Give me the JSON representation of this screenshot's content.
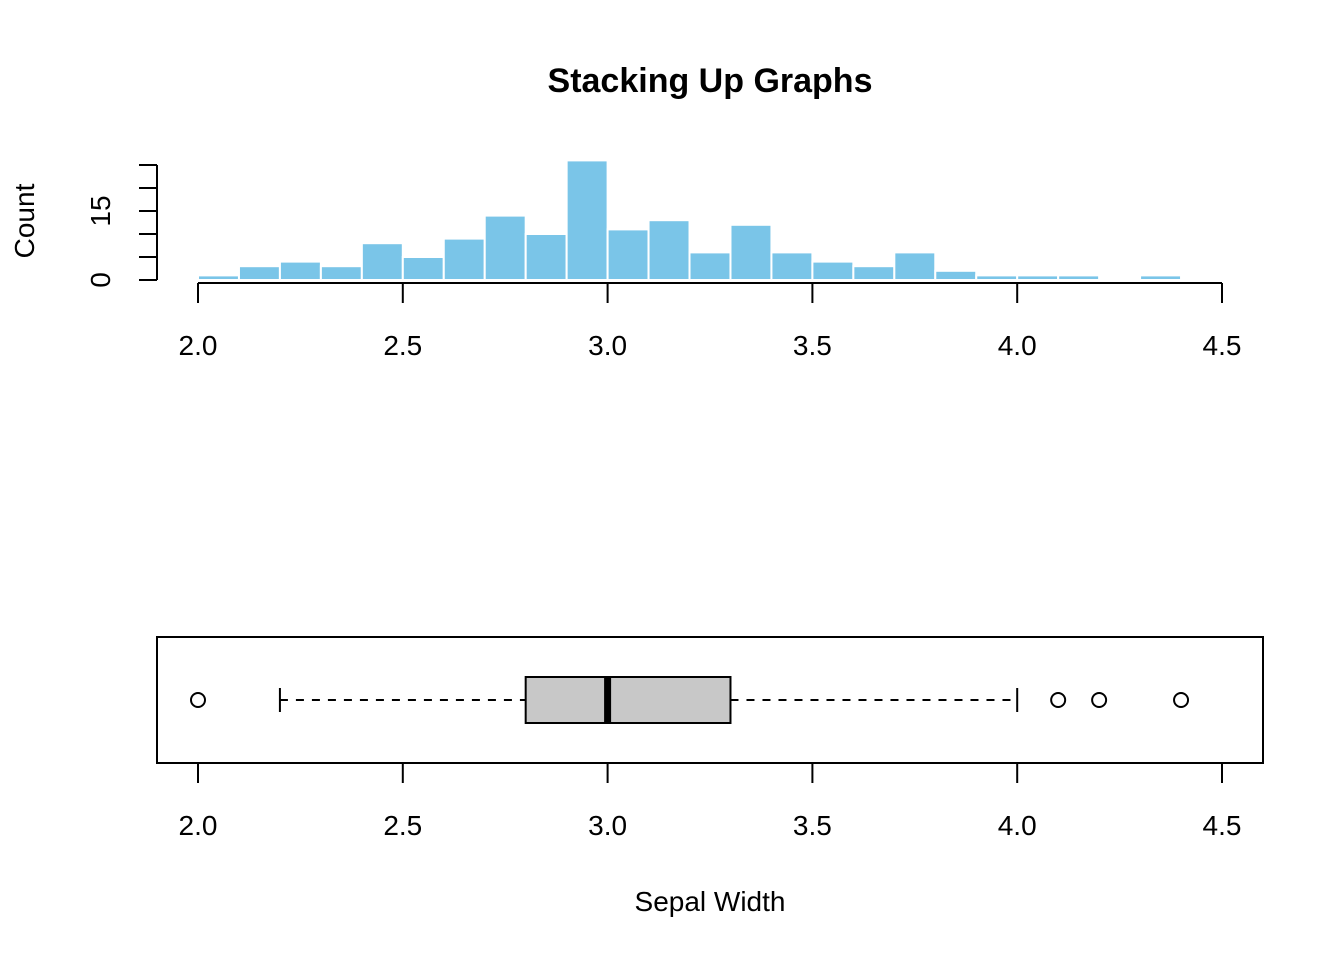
{
  "chart_data": [
    {
      "type": "histogram",
      "title": "Stacking Up Graphs",
      "xlabel": "",
      "ylabel": "Count",
      "xlim": [
        2.0,
        4.5
      ],
      "ylim": [
        0,
        25
      ],
      "x_ticks": [
        "2.0",
        "2.5",
        "3.0",
        "3.5",
        "4.0",
        "4.5"
      ],
      "y_tick_labels": [
        "0",
        "15"
      ],
      "bin_width": 0.1,
      "bins": [
        {
          "start": 2.0,
          "end": 2.1,
          "count": 1
        },
        {
          "start": 2.1,
          "end": 2.2,
          "count": 3
        },
        {
          "start": 2.2,
          "end": 2.3,
          "count": 4
        },
        {
          "start": 2.3,
          "end": 2.4,
          "count": 3
        },
        {
          "start": 2.4,
          "end": 2.5,
          "count": 8
        },
        {
          "start": 2.5,
          "end": 2.6,
          "count": 5
        },
        {
          "start": 2.6,
          "end": 2.7,
          "count": 9
        },
        {
          "start": 2.7,
          "end": 2.8,
          "count": 14
        },
        {
          "start": 2.8,
          "end": 2.9,
          "count": 10
        },
        {
          "start": 2.9,
          "end": 3.0,
          "count": 26
        },
        {
          "start": 3.0,
          "end": 3.1,
          "count": 11
        },
        {
          "start": 3.1,
          "end": 3.2,
          "count": 13
        },
        {
          "start": 3.2,
          "end": 3.3,
          "count": 6
        },
        {
          "start": 3.3,
          "end": 3.4,
          "count": 12
        },
        {
          "start": 3.4,
          "end": 3.5,
          "count": 6
        },
        {
          "start": 3.5,
          "end": 3.6,
          "count": 4
        },
        {
          "start": 3.6,
          "end": 3.7,
          "count": 3
        },
        {
          "start": 3.7,
          "end": 3.8,
          "count": 6
        },
        {
          "start": 3.8,
          "end": 3.9,
          "count": 2
        },
        {
          "start": 3.9,
          "end": 4.0,
          "count": 1
        },
        {
          "start": 4.0,
          "end": 4.1,
          "count": 1
        },
        {
          "start": 4.1,
          "end": 4.2,
          "count": 1
        },
        {
          "start": 4.2,
          "end": 4.3,
          "count": 0
        },
        {
          "start": 4.3,
          "end": 4.4,
          "count": 1
        }
      ],
      "bar_color": "#7ac5e8",
      "bar_border_color": "#ffffff"
    },
    {
      "type": "boxplot",
      "orientation": "horizontal",
      "xlabel": "Sepal Width",
      "xlim": [
        2.0,
        4.5
      ],
      "x_ticks": [
        "2.0",
        "2.5",
        "3.0",
        "3.5",
        "4.0",
        "4.5"
      ],
      "whisker_low": 2.2,
      "q1": 2.8,
      "median": 3.0,
      "q3": 3.3,
      "whisker_high": 4.0,
      "outliers": [
        2.0,
        4.1,
        4.2,
        4.4
      ],
      "box_color": "#c8c8c8"
    }
  ]
}
